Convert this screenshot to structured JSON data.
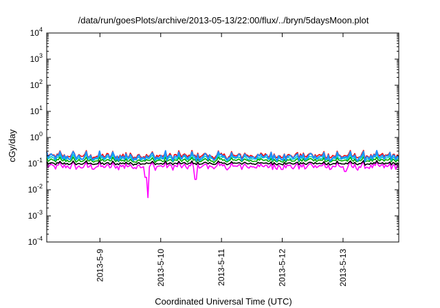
{
  "chart_data": {
    "type": "line",
    "title": "/data/run/goesPlots/archive/2013-05-13/22:00/flux/../bryn/5daysMoon.plot",
    "xlabel": "Coordinated Universal Time (UTC)",
    "ylabel": "cGy/day",
    "yscale": "log",
    "ylim": [
      0.0001,
      10000
    ],
    "xlim": [
      "2013-05-08 03:00",
      "2013-05-13 22:00"
    ],
    "yticks": [
      {
        "base": "10",
        "exp": "-4"
      },
      {
        "base": "10",
        "exp": "-3"
      },
      {
        "base": "10",
        "exp": "-2"
      },
      {
        "base": "10",
        "exp": "-1"
      },
      {
        "base": "10",
        "exp": "0"
      },
      {
        "base": "10",
        "exp": "1"
      },
      {
        "base": "10",
        "exp": "2"
      },
      {
        "base": "10",
        "exp": "3"
      },
      {
        "base": "10",
        "exp": "4"
      }
    ],
    "xticks": [
      {
        "label": "2013-5-9",
        "x": "2013-05-09 00:00"
      },
      {
        "label": "2013-5-10",
        "x": "2013-05-10 00:00"
      },
      {
        "label": "2013-5-11",
        "x": "2013-05-11 00:00"
      },
      {
        "label": "2013-5-12",
        "x": "2013-05-12 00:00"
      },
      {
        "label": "2013-5-13",
        "x": "2013-05-13 00:00"
      }
    ],
    "grid": false,
    "legend": "none",
    "series": [
      {
        "color": "#ff00ff",
        "base": 0.085,
        "amplitude": 0.3,
        "dips": [
          {
            "x": "2013-05-09 18:00",
            "y": 0.03
          },
          {
            "x": "2013-05-09 19:00",
            "y": 0.005
          },
          {
            "x": "2013-05-10 14:00",
            "y": 0.025
          },
          {
            "x": "2013-05-13 01:00",
            "y": 0.05
          }
        ]
      },
      {
        "color": "#000000",
        "base": 0.105,
        "amplitude": 0.15,
        "dips": []
      },
      {
        "color": "#00aa00",
        "base": 0.14,
        "amplitude": 0.2,
        "dips": []
      },
      {
        "color": "#00cccc",
        "base": 0.17,
        "amplitude": 0.25,
        "dips": []
      },
      {
        "color": "#ff0000",
        "base": 0.22,
        "amplitude": 0.3,
        "dips": []
      },
      {
        "color": "#1e90ff",
        "base": 0.2,
        "amplitude": 0.35,
        "dips": []
      }
    ]
  }
}
